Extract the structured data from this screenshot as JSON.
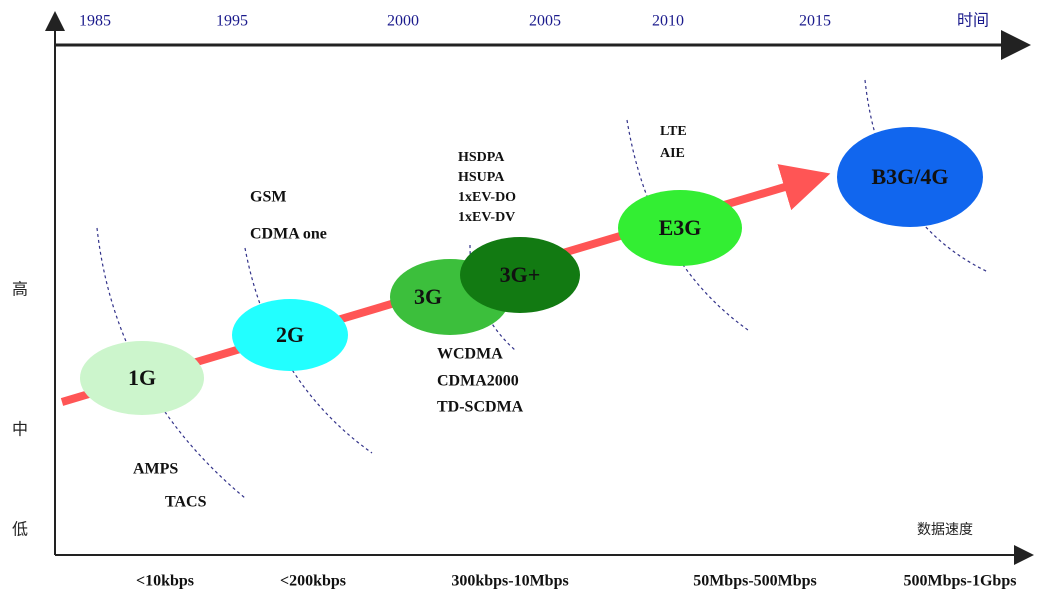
{
  "years": [
    "1985",
    "1995",
    "2000",
    "2005",
    "2010",
    "2015"
  ],
  "time_label": "时间",
  "levels": [
    "高",
    "中",
    "低"
  ],
  "speed_label": "数据速度",
  "speeds": [
    "<10kbps",
    "<200kbps",
    "300kbps-10Mbps",
    "50Mbps-500Mbps",
    "500Mbps-1Gbps"
  ],
  "nodes": [
    {
      "label": "1G"
    },
    {
      "label": "2G"
    },
    {
      "label": "3G"
    },
    {
      "label": "3G+"
    },
    {
      "label": "E3G"
    },
    {
      "label": "B3G/4G"
    }
  ],
  "technologies": {
    "g1": [
      "AMPS",
      "TACS"
    ],
    "g2": [
      "GSM",
      "CDMA one"
    ],
    "g3": [
      "WCDMA",
      "CDMA2000",
      "TD-SCDMA"
    ],
    "g3plus": [
      "HSDPA",
      "HSUPA",
      "1xEV-DO",
      "1xEV-DV"
    ],
    "e3g": [
      "LTE",
      "AIE"
    ]
  }
}
